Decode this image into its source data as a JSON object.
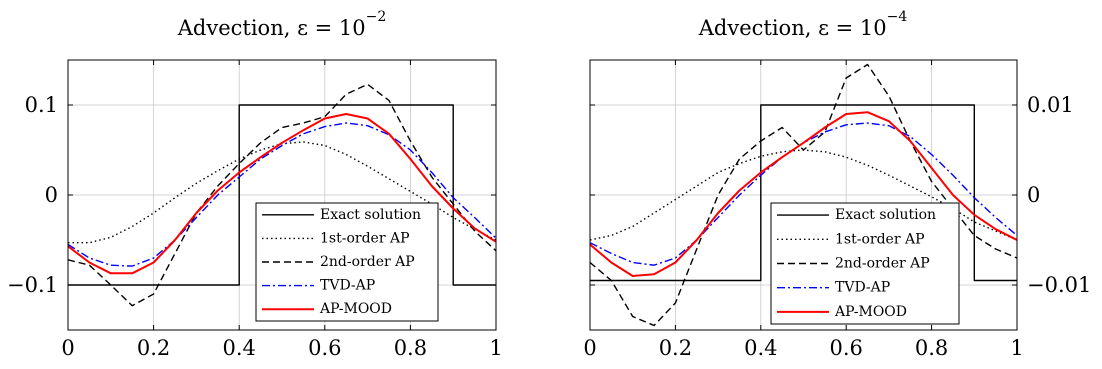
{
  "chart_data": [
    {
      "type": "line",
      "title": "Advection, ε = 10^−2",
      "title_text": "Advection, ε = 10",
      "title_exp": "−2",
      "xlim": [
        0,
        1
      ],
      "ylim": [
        -0.15,
        0.15
      ],
      "xticks": [
        0,
        0.2,
        0.4,
        0.6,
        0.8,
        1
      ],
      "xtick_labels": [
        "0",
        "0.2",
        "0.4",
        "0.6",
        "0.8",
        "1"
      ],
      "yticks": [
        -0.1,
        0,
        0.1
      ],
      "ytick_labels": [
        "−0.1",
        "0",
        "0.1"
      ],
      "yaxis_side": "left",
      "grid": true,
      "legend_position": "bottom-right",
      "series": [
        {
          "name": "Exact solution",
          "color": "#000000",
          "dash": "solid",
          "x": [
            0,
            0.4,
            0.4,
            0.9,
            0.9,
            1
          ],
          "y": [
            -0.1,
            -0.1,
            0.1,
            0.1,
            -0.1,
            -0.1
          ]
        },
        {
          "name": "1st-order AP",
          "color": "#000000",
          "dash": "dotted",
          "x": [
            0,
            0.05,
            0.1,
            0.15,
            0.2,
            0.25,
            0.3,
            0.35,
            0.4,
            0.45,
            0.5,
            0.55,
            0.6,
            0.65,
            0.7,
            0.75,
            0.8,
            0.85,
            0.9,
            0.95,
            1
          ],
          "y": [
            -0.053,
            -0.053,
            -0.047,
            -0.035,
            -0.02,
            -0.003,
            0.013,
            0.027,
            0.04,
            0.05,
            0.057,
            0.059,
            0.055,
            0.045,
            0.032,
            0.018,
            0.004,
            -0.01,
            -0.025,
            -0.038,
            -0.05
          ]
        },
        {
          "name": "2nd-order AP",
          "color": "#000000",
          "dash": "dashed",
          "x": [
            0,
            0.05,
            0.1,
            0.15,
            0.2,
            0.25,
            0.3,
            0.35,
            0.4,
            0.45,
            0.5,
            0.55,
            0.6,
            0.65,
            0.7,
            0.75,
            0.8,
            0.85,
            0.9,
            0.95,
            1
          ],
          "y": [
            -0.072,
            -0.078,
            -0.1,
            -0.123,
            -0.11,
            -0.065,
            -0.02,
            0.01,
            0.035,
            0.058,
            0.075,
            0.08,
            0.087,
            0.112,
            0.123,
            0.105,
            0.06,
            0.02,
            -0.01,
            -0.04,
            -0.062
          ]
        },
        {
          "name": "TVD-AP",
          "color": "#0000ff",
          "dash": "dashdot",
          "x": [
            0,
            0.05,
            0.1,
            0.15,
            0.2,
            0.25,
            0.3,
            0.35,
            0.4,
            0.45,
            0.5,
            0.55,
            0.6,
            0.65,
            0.7,
            0.75,
            0.8,
            0.85,
            0.9,
            0.95,
            1
          ],
          "y": [
            -0.055,
            -0.07,
            -0.078,
            -0.079,
            -0.07,
            -0.05,
            -0.025,
            0,
            0.02,
            0.04,
            0.055,
            0.068,
            0.076,
            0.08,
            0.077,
            0.067,
            0.05,
            0.025,
            -0.003,
            -0.025,
            -0.048
          ]
        },
        {
          "name": "AP-MOOD",
          "color": "#ff0000",
          "dash": "solid",
          "x": [
            0,
            0.05,
            0.1,
            0.15,
            0.2,
            0.25,
            0.3,
            0.35,
            0.4,
            0.45,
            0.5,
            0.55,
            0.6,
            0.65,
            0.7,
            0.75,
            0.8,
            0.85,
            0.9,
            0.95,
            1
          ],
          "y": [
            -0.057,
            -0.075,
            -0.087,
            -0.087,
            -0.075,
            -0.05,
            -0.02,
            0.005,
            0.025,
            0.042,
            0.058,
            0.072,
            0.085,
            0.09,
            0.085,
            0.068,
            0.04,
            0.01,
            -0.015,
            -0.037,
            -0.052
          ]
        }
      ]
    },
    {
      "type": "line",
      "title": "Advection, ε = 10^−4",
      "title_text": "Advection, ε = 10",
      "title_exp": "−4",
      "xlim": [
        0,
        1
      ],
      "ylim": [
        -0.015,
        0.015
      ],
      "xticks": [
        0,
        0.2,
        0.4,
        0.6,
        0.8,
        1
      ],
      "xtick_labels": [
        "0",
        "0.2",
        "0.4",
        "0.6",
        "0.8",
        "1"
      ],
      "yticks": [
        -0.01,
        0,
        0.01
      ],
      "ytick_labels": [
        "−0.01",
        "0",
        "0.01"
      ],
      "yaxis_side": "right",
      "grid": true,
      "legend_position": "bottom-right",
      "series": [
        {
          "name": "Exact solution",
          "color": "#000000",
          "dash": "solid",
          "x": [
            0,
            0.4,
            0.4,
            0.9,
            0.9,
            1
          ],
          "y": [
            -0.0095,
            -0.0095,
            0.01,
            0.01,
            -0.0095,
            -0.0095
          ]
        },
        {
          "name": "1st-order AP",
          "color": "#000000",
          "dash": "dotted",
          "x": [
            0,
            0.05,
            0.1,
            0.15,
            0.2,
            0.25,
            0.3,
            0.35,
            0.4,
            0.45,
            0.5,
            0.55,
            0.6,
            0.65,
            0.7,
            0.75,
            0.8,
            0.85,
            0.9,
            0.95,
            1
          ],
          "y": [
            -0.005,
            -0.0045,
            -0.0035,
            -0.002,
            -0.0005,
            0.001,
            0.0025,
            0.0035,
            0.0043,
            0.0048,
            0.005,
            0.0048,
            0.0042,
            0.0033,
            0.0022,
            0.001,
            -0.0002,
            -0.0015,
            -0.003,
            -0.004,
            -0.005
          ]
        },
        {
          "name": "2nd-order AP",
          "color": "#000000",
          "dash": "dashed",
          "x": [
            0,
            0.05,
            0.1,
            0.15,
            0.2,
            0.25,
            0.3,
            0.35,
            0.4,
            0.45,
            0.5,
            0.55,
            0.6,
            0.65,
            0.7,
            0.75,
            0.8,
            0.85,
            0.9,
            0.95,
            1
          ],
          "y": [
            -0.0075,
            -0.0095,
            -0.0135,
            -0.0145,
            -0.012,
            -0.006,
            0,
            0.004,
            0.006,
            0.0075,
            0.005,
            0.007,
            0.013,
            0.0145,
            0.011,
            0.006,
            0.0015,
            -0.0015,
            -0.0045,
            -0.006,
            -0.007
          ]
        },
        {
          "name": "TVD-AP",
          "color": "#0000ff",
          "dash": "dashdot",
          "x": [
            0,
            0.05,
            0.1,
            0.15,
            0.2,
            0.25,
            0.3,
            0.35,
            0.4,
            0.45,
            0.5,
            0.55,
            0.6,
            0.65,
            0.7,
            0.75,
            0.8,
            0.85,
            0.9,
            0.95,
            1
          ],
          "y": [
            -0.0053,
            -0.0065,
            -0.0075,
            -0.0078,
            -0.007,
            -0.005,
            -0.0025,
            0,
            0.0022,
            0.0042,
            0.0058,
            0.007,
            0.0078,
            0.008,
            0.0077,
            0.0065,
            0.0045,
            0.0022,
            -0.0003,
            -0.0025,
            -0.0045
          ]
        },
        {
          "name": "AP-MOOD",
          "color": "#ff0000",
          "dash": "solid",
          "x": [
            0,
            0.05,
            0.1,
            0.15,
            0.2,
            0.25,
            0.3,
            0.35,
            0.4,
            0.45,
            0.5,
            0.55,
            0.6,
            0.65,
            0.7,
            0.75,
            0.8,
            0.85,
            0.9,
            0.95,
            1
          ],
          "y": [
            -0.0055,
            -0.0075,
            -0.009,
            -0.0088,
            -0.0075,
            -0.005,
            -0.002,
            0.0005,
            0.0025,
            0.0042,
            0.0058,
            0.0075,
            0.009,
            0.0092,
            0.0082,
            0.006,
            0.003,
            0.0,
            -0.0022,
            -0.0038,
            -0.005
          ]
        }
      ]
    }
  ]
}
